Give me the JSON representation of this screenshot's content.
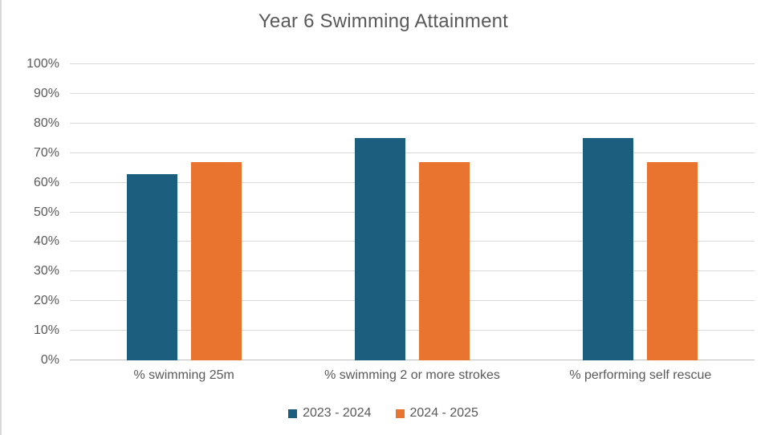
{
  "title": "Year 6 Swimming Attainment",
  "colors": {
    "series_2023_2024": "#1b5e7e",
    "series_2024_2025": "#e8742f",
    "text": "#595959",
    "gridline": "#d9d9d9",
    "axis_line": "#bfbfbf",
    "background": "#ffffff",
    "left_border": "#d9d9d9"
  },
  "chart_data": {
    "type": "bar",
    "title": "Year 6 Swimming Attainment",
    "categories": [
      "% swimming 25m",
      "% swimming 2 or more strokes",
      "% performing self rescue"
    ],
    "series": [
      {
        "name": "2023 - 2024",
        "color": "#1b5e7e",
        "values": [
          63,
          75,
          75
        ]
      },
      {
        "name": "2024 - 2025",
        "color": "#e8742f",
        "values": [
          67,
          67,
          67
        ]
      }
    ],
    "xlabel": "",
    "ylabel": "",
    "ylim": [
      0,
      100
    ],
    "ytick_step": 10,
    "ytick_labels": [
      "0%",
      "10%",
      "20%",
      "30%",
      "40%",
      "50%",
      "60%",
      "70%",
      "80%",
      "90%",
      "100%"
    ],
    "grid": true,
    "legend_position": "bottom"
  }
}
